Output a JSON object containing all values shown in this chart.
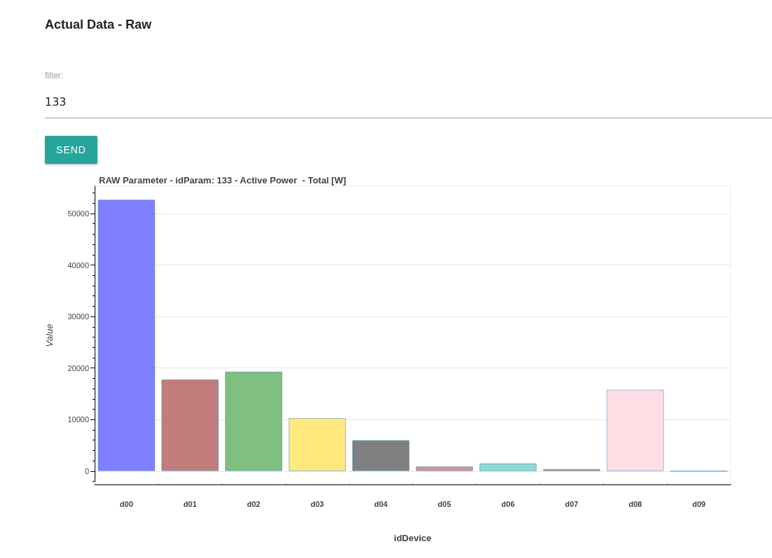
{
  "chart_data": {
    "type": "bar",
    "title": "RAW Parameter - idParam: 133 - Active Power  - Total [W]",
    "xlabel": "idDevice",
    "ylabel": "Value",
    "annotations": [
      "Actual Data - Raw",
      "filter:",
      "133",
      "SEND"
    ],
    "categories": [
      "d00",
      "d01",
      "d02",
      "d03",
      "d04",
      "d05",
      "d06",
      "d07",
      "d08",
      "d09"
    ],
    "values": [
      52700,
      17800,
      19300,
      10300,
      6000,
      900,
      1500,
      400,
      15800,
      0
    ],
    "colors": [
      "#7f7fff",
      "#c27c7c",
      "#7fbf7f",
      "#ffe97f",
      "#7f7f7f",
      "#d69494",
      "#8fd9d4",
      "#aaa560",
      "#ffdde4",
      "#a0c0e0"
    ],
    "ylim": [
      -2600,
      55300
    ],
    "yticks": [
      {
        "value": -2000,
        "label": null
      },
      0,
      {
        "value": 2000,
        "label": null
      },
      {
        "value": 4000,
        "label": null
      },
      {
        "value": 6000,
        "label": null
      },
      {
        "value": 8000,
        "label": null
      },
      10000,
      {
        "value": 12000,
        "label": null
      },
      {
        "value": 14000,
        "label": null
      },
      {
        "value": 16000,
        "label": null
      },
      {
        "value": 18000,
        "label": null
      },
      20000,
      {
        "value": 22000,
        "label": null
      },
      {
        "value": 24000,
        "label": null
      },
      {
        "value": 26000,
        "label": null
      },
      {
        "value": 28000,
        "label": null
      },
      30000,
      {
        "value": 32000,
        "label": null
      },
      {
        "value": 34000,
        "label": null
      },
      {
        "value": 36000,
        "label": null
      },
      {
        "value": 38000,
        "label": null
      },
      40000,
      {
        "value": 42000,
        "label": null
      },
      {
        "value": 44000,
        "label": null
      },
      {
        "value": 46000,
        "label": null
      },
      {
        "value": 48000,
        "label": null
      },
      50000,
      {
        "value": 52000,
        "label": null
      },
      {
        "value": 54000,
        "label": null
      }
    ],
    "grid": "y"
  }
}
